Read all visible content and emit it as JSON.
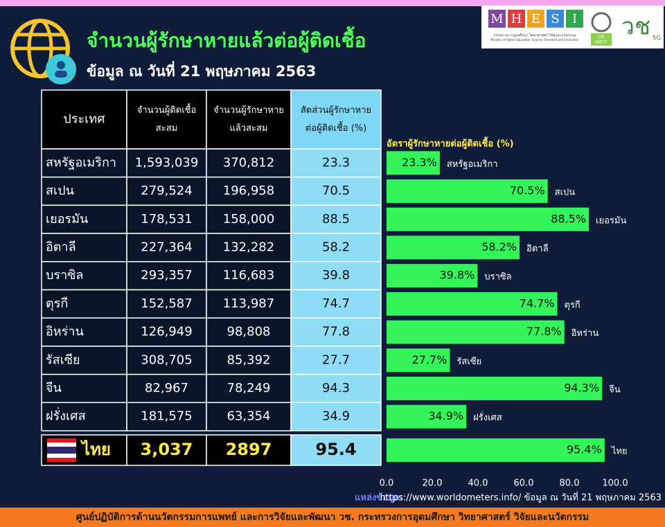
{
  "header": {
    "title": "จำนวนผู้รักษาหายแล้วต่อผู้ติดเชื้อ",
    "subtitle": "ข้อมูล ณ วันที่ 21 พฤษภาคม 2563",
    "logo_letters": [
      "M",
      "H",
      "E",
      "S",
      "I"
    ],
    "logo_line1": "กระทรวงการอุดมศึกษา วิทยาศาสตร์ วิจัยและนวัตกรรม",
    "logo_line2": "Ministry of Higher Education, Science, Research and Innovation",
    "nrct_th": "วช.",
    "nrct_en": "NRCT",
    "brand": "วช",
    "brand_sub": "5G"
  },
  "table": {
    "columns": [
      [
        "ประเทศ"
      ],
      [
        "จำนวนผู้ติดเชื้อ",
        "สะสม"
      ],
      [
        "จำนวนผู้รักษาหาย",
        "แล้วสะสม"
      ],
      [
        "สัดส่วนผู้รักษาหาย",
        "ต่อผู้ติดเชื้อ (%)"
      ]
    ],
    "rows": [
      [
        "สหรัฐอเมริกา",
        "1,593,039",
        "370,812",
        "23.3"
      ],
      [
        "สเปน",
        "279,524",
        "196,958",
        "70.5"
      ],
      [
        "เยอรมัน",
        "178,531",
        "158,000",
        "88.5"
      ],
      [
        "อิตาลี",
        "227,364",
        "132,282",
        "58.2"
      ],
      [
        "บราซิล",
        "293,357",
        "116,683",
        "39.8"
      ],
      [
        "ตุรกี",
        "152,587",
        "113,987",
        "74.7"
      ],
      [
        "อิหร่าน",
        "126,949",
        "98,808",
        "77.8"
      ],
      [
        "รัสเซีย",
        "308,705",
        "85,392",
        "27.7"
      ],
      [
        "จีน",
        "82,967",
        "78,249",
        "94.3"
      ],
      [
        "ฝรั่งเศส",
        "181,575",
        "63,354",
        "34.9"
      ]
    ],
    "highlight_row": [
      "ไทย",
      "3,037",
      "2897",
      "95.4"
    ]
  },
  "chart_data": {
    "type": "hbar",
    "title": "อัตราผู้รักษาหายต่อผู้ติดเชื้อ (%)",
    "categories": [
      "สหรัฐอเมริกา",
      "สเปน",
      "เยอรมัน",
      "อิตาลี",
      "บราซิล",
      "ตุรกี",
      "อิหร่าน",
      "รัสเซีย",
      "จีน",
      "ฝรั่งเศส",
      "ไทย"
    ],
    "values": [
      23.3,
      70.5,
      88.5,
      58.2,
      39.8,
      74.7,
      77.8,
      27.7,
      94.3,
      34.9,
      95.4
    ],
    "value_labels": [
      "23.3%",
      "70.5%",
      "88.5%",
      "58.2%",
      "39.8%",
      "74.7%",
      "77.8%",
      "27.7%",
      "94.3%",
      "34.9%",
      "95.4%"
    ],
    "color": "#33f55a",
    "xlim": [
      0,
      100
    ],
    "xticks": [
      {
        "value": 0,
        "label": "0.0"
      },
      {
        "value": 20,
        "label": "20.0"
      },
      {
        "value": 40,
        "label": "40.0"
      },
      {
        "value": 60,
        "label": "60.0"
      },
      {
        "value": 80,
        "label": "80.0"
      },
      {
        "value": 100,
        "label": "100.0"
      }
    ]
  },
  "source": {
    "label": "แหล่งข้อมูล:",
    "text": "https://www.worldometers.info/ ข้อมูล ณ วันที่ 21 พฤษภาคม 2563"
  },
  "footer": "ศูนย์ปฏิบัติการด้านนวัตกรรมการแพทย์ และการวิจัยและพัฒนา วช.  กระทรวงการอุดมศึกษา วิทยาศาสตร์ วิจัยและนวัตกรรม"
}
